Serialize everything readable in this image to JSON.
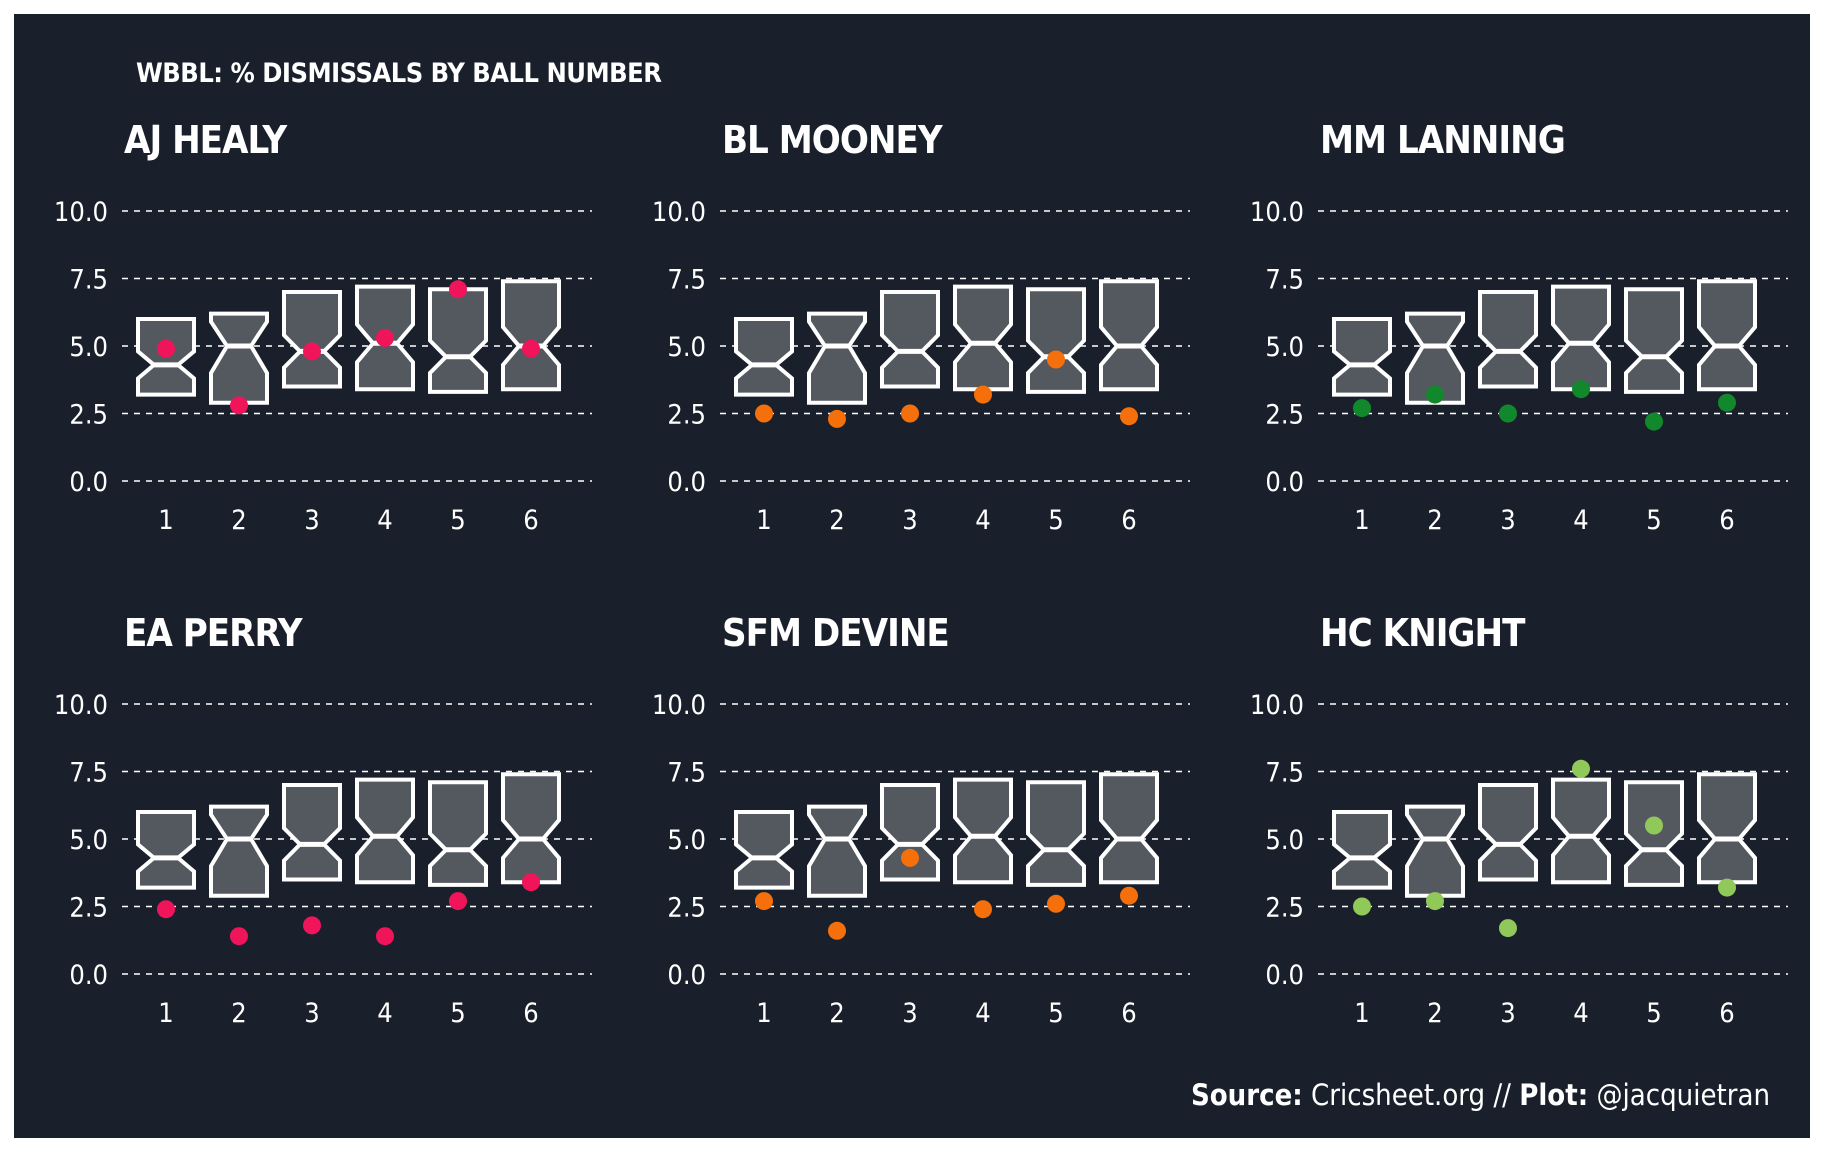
{
  "chart_data": {
    "type": "boxplot-with-points",
    "title": "WBBL: % DISMISSALS BY BALL NUMBER",
    "caption": {
      "source_label": "Source:",
      "source_value": "Cricsheet.org",
      "separator": "//",
      "plot_label": "Plot:",
      "plot_value": "@jacquietran"
    },
    "categories": [
      "1",
      "2",
      "3",
      "4",
      "5",
      "6"
    ],
    "ylim": [
      0,
      10
    ],
    "yticks": [
      "0.0",
      "2.5",
      "5.0",
      "7.5",
      "10.0"
    ],
    "grid": true,
    "box_fill": "#545960",
    "box_stroke": "#ffffff",
    "background": "#1a202b",
    "boxes": [
      {
        "q1": 3.2,
        "median": 4.3,
        "q3": 6.0,
        "notch_low": 3.8,
        "notch_high": 4.8
      },
      {
        "q1": 2.9,
        "median": 5.0,
        "q3": 6.2,
        "notch_low": 4.0,
        "notch_high": 5.9
      },
      {
        "q1": 3.5,
        "median": 4.8,
        "q3": 7.0,
        "notch_low": 4.2,
        "notch_high": 5.4
      },
      {
        "q1": 3.4,
        "median": 5.1,
        "q3": 7.2,
        "notch_low": 4.4,
        "notch_high": 5.8
      },
      {
        "q1": 3.3,
        "median": 4.6,
        "q3": 7.1,
        "notch_low": 4.0,
        "notch_high": 5.2
      },
      {
        "q1": 3.4,
        "median": 5.0,
        "q3": 7.4,
        "notch_low": 4.3,
        "notch_high": 5.7
      }
    ],
    "panels": [
      {
        "name": "AJ HEALY",
        "color": "#f0145a",
        "values": [
          4.9,
          2.8,
          4.8,
          5.3,
          7.1,
          4.9
        ]
      },
      {
        "name": "BL MOONEY",
        "color": "#f5700a",
        "values": [
          2.5,
          2.3,
          2.5,
          3.2,
          4.5,
          2.4
        ]
      },
      {
        "name": "MM LANNING",
        "color": "#11882b",
        "values": [
          2.7,
          3.2,
          2.5,
          3.4,
          2.2,
          2.9
        ]
      },
      {
        "name": "EA PERRY",
        "color": "#f0145a",
        "values": [
          2.4,
          1.4,
          1.8,
          1.4,
          2.7,
          3.4
        ]
      },
      {
        "name": "SFM DEVINE",
        "color": "#f5700a",
        "values": [
          2.7,
          1.6,
          4.3,
          2.4,
          2.6,
          2.9
        ]
      },
      {
        "name": "HC KNIGHT",
        "color": "#90c85a",
        "values": [
          2.5,
          2.7,
          1.7,
          7.6,
          5.5,
          3.2
        ]
      }
    ]
  }
}
